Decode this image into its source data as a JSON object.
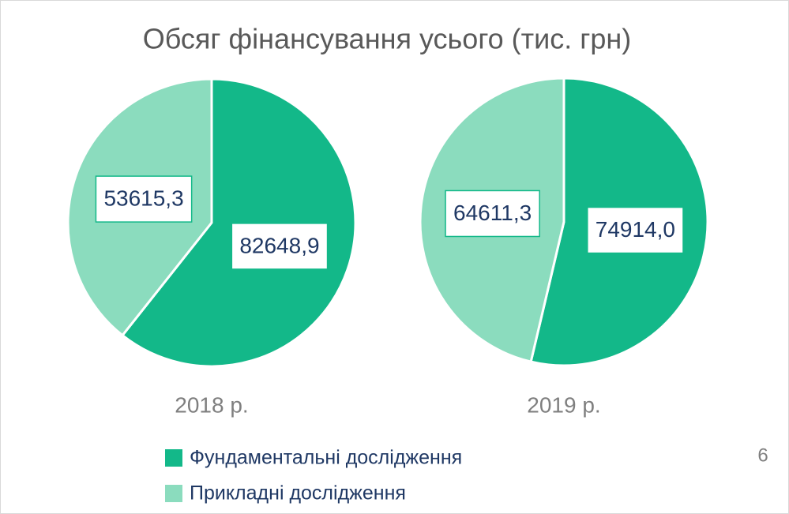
{
  "chart_data": {
    "type": "pie",
    "title": "Обсяг фінансування усього (тис. грн)",
    "categories": [
      "Фундаментальні дослідження",
      "Прикладні дослідження"
    ],
    "colors": [
      "#13b889",
      "#8bdcbe"
    ],
    "series": [
      {
        "name": "2018 р.",
        "values": [
          82648.9,
          53615.3
        ],
        "value_labels": [
          "82648,9",
          "53615,3"
        ]
      },
      {
        "name": "2019 р.",
        "values": [
          74914.0,
          64611.3
        ],
        "value_labels": [
          "74914,0",
          "64611,3"
        ]
      }
    ],
    "legend": "bottom"
  },
  "page_number": "6"
}
